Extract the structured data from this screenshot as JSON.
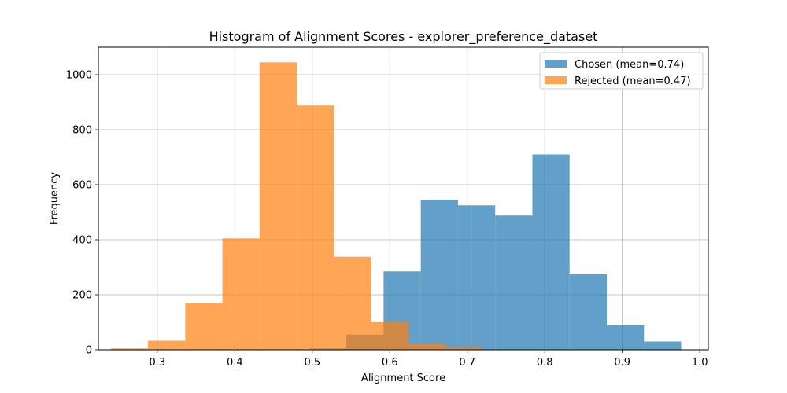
{
  "chart_data": {
    "type": "bar",
    "subtype": "histogram",
    "title": "Histogram of Alignment Scores - explorer_preference_dataset",
    "xlabel": "Alignment Score",
    "ylabel": "Frequency",
    "xlim": [
      0.224,
      1.011
    ],
    "ylim": [
      0,
      1100
    ],
    "xticks": [
      0.3,
      0.4,
      0.5,
      0.6,
      0.7,
      0.8,
      0.9,
      1.0
    ],
    "xtick_labels": [
      "0.3",
      "0.4",
      "0.5",
      "0.6",
      "0.7",
      "0.8",
      "0.9",
      "1.0"
    ],
    "yticks": [
      0,
      200,
      400,
      600,
      800,
      1000
    ],
    "ytick_labels": [
      "0",
      "200",
      "400",
      "600",
      "800",
      "1000"
    ],
    "grid": true,
    "legend_position": "top-right",
    "series": [
      {
        "name": "Chosen (mean=0.74)",
        "color": "#1f77b4",
        "alpha": 0.7,
        "bins": [
          {
            "x0": 0.496,
            "x1": 0.544,
            "count": 5
          },
          {
            "x0": 0.544,
            "x1": 0.592,
            "count": 55
          },
          {
            "x0": 0.592,
            "x1": 0.64,
            "count": 285
          },
          {
            "x0": 0.64,
            "x1": 0.688,
            "count": 545
          },
          {
            "x0": 0.688,
            "x1": 0.736,
            "count": 525
          },
          {
            "x0": 0.736,
            "x1": 0.784,
            "count": 488
          },
          {
            "x0": 0.784,
            "x1": 0.832,
            "count": 710
          },
          {
            "x0": 0.832,
            "x1": 0.88,
            "count": 275
          },
          {
            "x0": 0.88,
            "x1": 0.928,
            "count": 90
          },
          {
            "x0": 0.928,
            "x1": 0.976,
            "count": 30
          }
        ]
      },
      {
        "name": "Rejected (mean=0.47)",
        "color": "#ff7f0e",
        "alpha": 0.7,
        "bins": [
          {
            "x0": 0.24,
            "x1": 0.288,
            "count": 5
          },
          {
            "x0": 0.288,
            "x1": 0.336,
            "count": 33
          },
          {
            "x0": 0.336,
            "x1": 0.384,
            "count": 170
          },
          {
            "x0": 0.384,
            "x1": 0.432,
            "count": 405
          },
          {
            "x0": 0.432,
            "x1": 0.48,
            "count": 1045
          },
          {
            "x0": 0.48,
            "x1": 0.528,
            "count": 888
          },
          {
            "x0": 0.528,
            "x1": 0.576,
            "count": 338
          },
          {
            "x0": 0.576,
            "x1": 0.624,
            "count": 100
          },
          {
            "x0": 0.624,
            "x1": 0.672,
            "count": 22
          },
          {
            "x0": 0.672,
            "x1": 0.72,
            "count": 8
          }
        ]
      }
    ]
  }
}
